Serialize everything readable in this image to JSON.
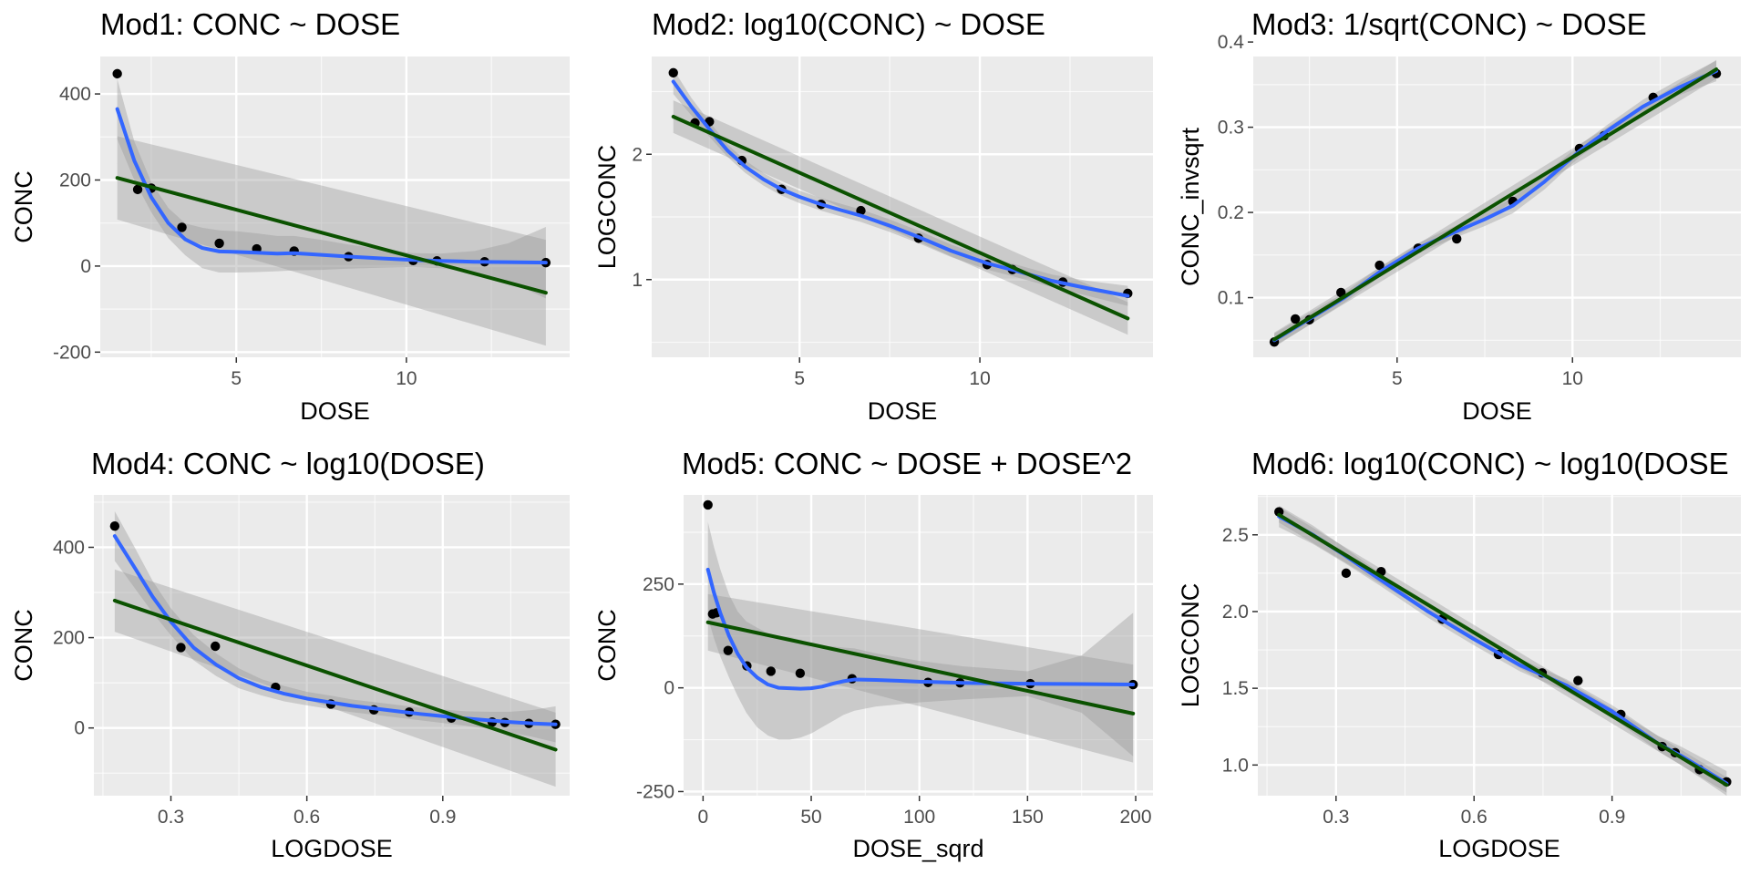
{
  "colors": {
    "panel_bg": "#ebebeb",
    "grid_major": "#ffffff",
    "point": "#000000",
    "ribbon": "#999999",
    "smooth_line": "#3366ff",
    "linear_fit": "#0b5200",
    "tick_text": "#4d4d4d"
  },
  "chart_data": [
    {
      "type": "scatter",
      "title": "Mod1: CONC ~ DOSE",
      "xlabel": "DOSE",
      "ylabel": "CONC",
      "xlim": [
        1.0,
        14.8
      ],
      "ylim": [
        -212,
        487
      ],
      "xticks": [
        5,
        10
      ],
      "xtick_labels": [
        "5",
        "10"
      ],
      "yticks": [
        -200,
        0,
        200,
        400
      ],
      "ytick_labels": [
        "-200",
        "0",
        "200",
        "400"
      ],
      "grid": true,
      "points": {
        "x": [
          1.5,
          2.1,
          2.5,
          3.4,
          4.5,
          5.6,
          6.7,
          8.3,
          10.2,
          10.9,
          12.3,
          14.1
        ],
        "y": [
          447,
          178,
          181,
          90,
          53,
          40,
          35,
          22,
          13,
          12,
          10,
          8
        ]
      },
      "smooth": {
        "x": [
          1.5,
          2.0,
          2.5,
          3.0,
          3.5,
          4.0,
          4.5,
          5.0,
          5.6,
          6.2,
          6.7,
          7.5,
          8.3,
          9.2,
          10.2,
          11.0,
          12.0,
          13.0,
          14.1
        ],
        "y": [
          365,
          245,
          160,
          100,
          62,
          42,
          34,
          33,
          31,
          29,
          30,
          26,
          22,
          18,
          14,
          12,
          10,
          9,
          8
        ],
        "lower": [
          295,
          200,
          125,
          65,
          25,
          -5,
          -15,
          -15,
          -14,
          -12,
          -10,
          -9,
          -6,
          -4,
          -2,
          -5,
          -15,
          -35,
          -75
        ],
        "upper": [
          435,
          290,
          195,
          135,
          99,
          89,
          83,
          81,
          76,
          70,
          70,
          61,
          50,
          40,
          30,
          29,
          35,
          53,
          91
        ]
      },
      "linear": {
        "x": [
          1.5,
          14.1
        ],
        "y": [
          205,
          -62
        ],
        "lower": [
          108,
          -185
        ],
        "upper": [
          302,
          61
        ]
      }
    },
    {
      "type": "scatter",
      "title": "Mod2: log10(CONC) ~ DOSE",
      "xlabel": "DOSE",
      "ylabel": "LOGCONC",
      "xlim": [
        0.9,
        14.8
      ],
      "ylim": [
        0.38,
        2.78
      ],
      "xticks": [
        5,
        10
      ],
      "xtick_labels": [
        "5",
        "10"
      ],
      "yticks": [
        1,
        2
      ],
      "ytick_labels": [
        "1",
        "2"
      ],
      "grid": true,
      "points": {
        "x": [
          1.5,
          2.1,
          2.5,
          3.4,
          4.5,
          5.6,
          6.7,
          8.3,
          10.2,
          10.9,
          12.3,
          14.1
        ],
        "y": [
          2.65,
          2.25,
          2.26,
          1.95,
          1.72,
          1.6,
          1.55,
          1.33,
          1.12,
          1.08,
          0.98,
          0.89
        ]
      },
      "smooth": {
        "x": [
          1.5,
          2.0,
          2.5,
          3.0,
          3.5,
          4.0,
          4.5,
          5.0,
          5.6,
          6.2,
          6.7,
          7.5,
          8.3,
          9.2,
          10.2,
          11.0,
          12.0,
          13.0,
          14.1
        ],
        "y": [
          2.58,
          2.38,
          2.2,
          2.03,
          1.9,
          1.8,
          1.72,
          1.66,
          1.6,
          1.55,
          1.51,
          1.43,
          1.34,
          1.23,
          1.13,
          1.07,
          0.99,
          0.93,
          0.87
        ],
        "lower": [
          2.48,
          2.31,
          2.14,
          1.98,
          1.85,
          1.75,
          1.67,
          1.61,
          1.55,
          1.5,
          1.46,
          1.38,
          1.29,
          1.18,
          1.08,
          1.02,
          0.94,
          0.87,
          0.79
        ],
        "upper": [
          2.68,
          2.45,
          2.26,
          2.08,
          1.95,
          1.85,
          1.77,
          1.71,
          1.65,
          1.6,
          1.56,
          1.48,
          1.39,
          1.28,
          1.18,
          1.12,
          1.04,
          0.99,
          0.95
        ]
      },
      "linear": {
        "x": [
          1.5,
          14.1
        ],
        "y": [
          2.3,
          0.69
        ],
        "lower": [
          2.17,
          0.56
        ],
        "upper": [
          2.43,
          0.82
        ]
      }
    },
    {
      "type": "scatter",
      "title": "Mod3: 1/sqrt(CONC) ~ DOSE",
      "xlabel": "DOSE",
      "ylabel": "CONC_invsqrt",
      "xlim": [
        0.9,
        14.8
      ],
      "ylim": [
        0.03,
        0.383
      ],
      "xticks": [
        5,
        10
      ],
      "xtick_labels": [
        "5",
        "10"
      ],
      "yticks": [
        0.1,
        0.2,
        0.3,
        0.4
      ],
      "ytick_labels": [
        "0.1",
        "0.2",
        "0.3",
        "0.4"
      ],
      "grid": true,
      "points": {
        "x": [
          1.5,
          2.1,
          2.5,
          3.4,
          4.5,
          5.6,
          6.7,
          8.3,
          10.2,
          10.9,
          12.3,
          14.1
        ],
        "y": [
          0.048,
          0.075,
          0.074,
          0.106,
          0.138,
          0.158,
          0.169,
          0.213,
          0.275,
          0.29,
          0.335,
          0.363
        ]
      },
      "smooth": {
        "x": [
          1.5,
          2.5,
          3.5,
          4.5,
          5.6,
          6.7,
          7.5,
          8.3,
          9.2,
          10.2,
          11.0,
          12.0,
          13.0,
          14.1
        ],
        "y": [
          0.05,
          0.075,
          0.1,
          0.13,
          0.158,
          0.178,
          0.192,
          0.208,
          0.236,
          0.272,
          0.296,
          0.324,
          0.346,
          0.366
        ],
        "lower": [
          0.042,
          0.068,
          0.094,
          0.124,
          0.152,
          0.171,
          0.184,
          0.199,
          0.227,
          0.265,
          0.289,
          0.316,
          0.337,
          0.354
        ],
        "upper": [
          0.058,
          0.082,
          0.106,
          0.136,
          0.164,
          0.185,
          0.2,
          0.217,
          0.245,
          0.279,
          0.303,
          0.332,
          0.355,
          0.378
        ]
      },
      "linear": {
        "x": [
          1.5,
          14.1
        ],
        "y": [
          0.051,
          0.368
        ],
        "lower": [
          0.043,
          0.357
        ],
        "upper": [
          0.059,
          0.379
        ]
      }
    },
    {
      "type": "scatter",
      "title": "Mod4: CONC ~ log10(DOSE)",
      "xlabel": "LOGDOSE",
      "ylabel": "CONC",
      "xlim": [
        0.13,
        1.18
      ],
      "ylim": [
        -150,
        516
      ],
      "xticks": [
        0.3,
        0.6,
        0.9
      ],
      "xtick_labels": [
        "0.3",
        "0.6",
        "0.9"
      ],
      "yticks": [
        0,
        200,
        400
      ],
      "ytick_labels": [
        "0",
        "200",
        "400"
      ],
      "grid": true,
      "points": {
        "x": [
          0.176,
          0.322,
          0.398,
          0.531,
          0.653,
          0.748,
          0.826,
          0.919,
          1.009,
          1.037,
          1.09,
          1.149
        ],
        "y": [
          447,
          178,
          181,
          90,
          53,
          40,
          35,
          22,
          13,
          12,
          10,
          8
        ]
      },
      "smooth": {
        "x": [
          0.176,
          0.22,
          0.26,
          0.3,
          0.35,
          0.4,
          0.45,
          0.5,
          0.55,
          0.6,
          0.65,
          0.7,
          0.75,
          0.8,
          0.85,
          0.9,
          0.95,
          1.0,
          1.05,
          1.1,
          1.149
        ],
        "y": [
          425,
          355,
          290,
          235,
          178,
          140,
          110,
          90,
          76,
          65,
          57,
          49,
          43,
          37,
          31,
          26,
          21,
          17,
          13,
          10,
          8
        ],
        "lower": [
          370,
          310,
          255,
          205,
          150,
          115,
          88,
          72,
          59,
          50,
          42,
          35,
          29,
          23,
          17,
          11,
          5,
          -2,
          -10,
          -20,
          -32
        ],
        "upper": [
          480,
          400,
          325,
          265,
          206,
          165,
          132,
          108,
          93,
          80,
          72,
          63,
          57,
          51,
          45,
          41,
          37,
          36,
          36,
          40,
          48
        ]
      },
      "linear": {
        "x": [
          0.176,
          1.149
        ],
        "y": [
          282,
          -48
        ],
        "lower": [
          213,
          -130
        ],
        "upper": [
          351,
          34
        ]
      }
    },
    {
      "type": "scatter",
      "title": "Mod5: CONC ~ DOSE + DOSE^2",
      "xlabel": "DOSE_sqrd",
      "ylabel": "CONC",
      "xlim": [
        -9,
        208
      ],
      "ylim": [
        -260,
        465
      ],
      "xticks": [
        0,
        50,
        100,
        150,
        200
      ],
      "xtick_labels": [
        "0",
        "50",
        "100",
        "150",
        "200"
      ],
      "yticks": [
        -250,
        0,
        250
      ],
      "ytick_labels": [
        "-250",
        "0",
        "250"
      ],
      "grid": true,
      "points": {
        "x": [
          2.25,
          4.41,
          6.25,
          11.56,
          20.25,
          31.36,
          44.89,
          68.89,
          104.04,
          118.81,
          151.29,
          198.81
        ],
        "y": [
          441,
          178,
          181,
          90,
          53,
          40,
          35,
          22,
          13,
          12,
          10,
          8
        ]
      },
      "smooth": {
        "x": [
          2.25,
          5,
          8,
          12,
          16,
          20,
          25,
          30,
          35,
          40,
          45,
          50,
          55,
          60,
          65,
          70,
          80,
          90,
          100,
          120,
          150,
          175,
          198.81
        ],
        "y": [
          285,
          230,
          180,
          125,
          82,
          50,
          25,
          8,
          0,
          -1,
          -2,
          -1,
          3,
          10,
          16,
          20,
          19,
          17,
          15,
          12,
          10,
          9,
          8
        ],
        "lower": [
          170,
          120,
          75,
          25,
          -20,
          -60,
          -95,
          -115,
          -125,
          -125,
          -120,
          -110,
          -95,
          -80,
          -65,
          -55,
          -45,
          -40,
          -35,
          -28,
          -20,
          -60,
          -165
        ],
        "upper": [
          400,
          340,
          285,
          225,
          184,
          160,
          145,
          131,
          125,
          123,
          116,
          108,
          101,
          100,
          97,
          95,
          83,
          74,
          65,
          52,
          40,
          78,
          181
        ]
      },
      "linear": {
        "x": [
          2.25,
          198.81
        ],
        "y": [
          158,
          -62
        ],
        "lower": [
          90,
          -180
        ],
        "upper": [
          226,
          56
        ]
      }
    },
    {
      "type": "scatter",
      "title": "Mod6: log10(CONC) ~ log10(DOSE",
      "xlabel": "LOGDOSE",
      "ylabel": "LOGCONC",
      "xlim": [
        0.13,
        1.18
      ],
      "ylim": [
        0.8,
        2.76
      ],
      "xticks": [
        0.3,
        0.6,
        0.9
      ],
      "xtick_labels": [
        "0.3",
        "0.6",
        "0.9"
      ],
      "yticks": [
        1.0,
        1.5,
        2.0,
        2.5
      ],
      "ytick_labels": [
        "1.0",
        "1.5",
        "2.0",
        "2.5"
      ],
      "grid": true,
      "points": {
        "x": [
          0.176,
          0.322,
          0.398,
          0.531,
          0.653,
          0.748,
          0.826,
          0.919,
          1.009,
          1.037,
          1.09,
          1.149
        ],
        "y": [
          2.65,
          2.25,
          2.26,
          1.95,
          1.72,
          1.6,
          1.55,
          1.33,
          1.12,
          1.08,
          0.97,
          0.89
        ]
      },
      "smooth": {
        "x": [
          0.176,
          0.25,
          0.322,
          0.4,
          0.5,
          0.6,
          0.7,
          0.8,
          0.9,
          1.0,
          1.05,
          1.1,
          1.149
        ],
        "y": [
          2.62,
          2.5,
          2.36,
          2.2,
          2.0,
          1.82,
          1.65,
          1.52,
          1.35,
          1.14,
          1.06,
          0.97,
          0.88
        ],
        "lower": [
          2.55,
          2.44,
          2.31,
          2.16,
          1.96,
          1.78,
          1.61,
          1.48,
          1.31,
          1.09,
          1.0,
          0.9,
          0.8
        ],
        "upper": [
          2.69,
          2.56,
          2.41,
          2.24,
          2.04,
          1.86,
          1.69,
          1.56,
          1.39,
          1.19,
          1.12,
          1.04,
          0.96
        ]
      },
      "linear": {
        "x": [
          0.176,
          1.149
        ],
        "y": [
          2.63,
          0.87
        ],
        "lower": [
          2.58,
          0.82
        ],
        "upper": [
          2.68,
          0.92
        ]
      }
    }
  ]
}
